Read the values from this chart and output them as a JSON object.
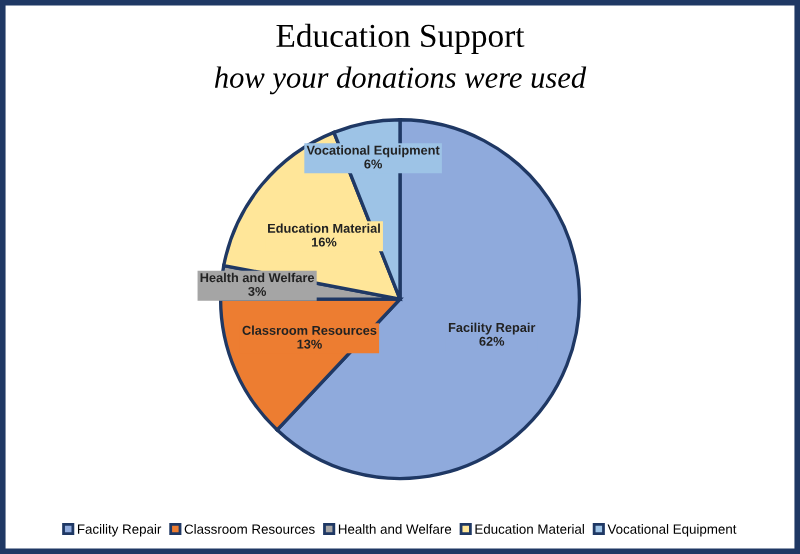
{
  "chart_data": {
    "type": "pie",
    "title": "Education Support",
    "subtitle": "how your donations were used",
    "categories": [
      "Facility Repair",
      "Classroom Resources",
      "Health and Welfare",
      "Education Material",
      "Vocational Equipment"
    ],
    "values": [
      62,
      13,
      3,
      16,
      6
    ],
    "colors": [
      "#8faadc",
      "#ed7d31",
      "#a5a5a5",
      "#ffe699",
      "#9dc3e6"
    ],
    "value_labels": [
      "62%",
      "13%",
      "3%",
      "16%",
      "6%"
    ],
    "legend": "bottom"
  }
}
